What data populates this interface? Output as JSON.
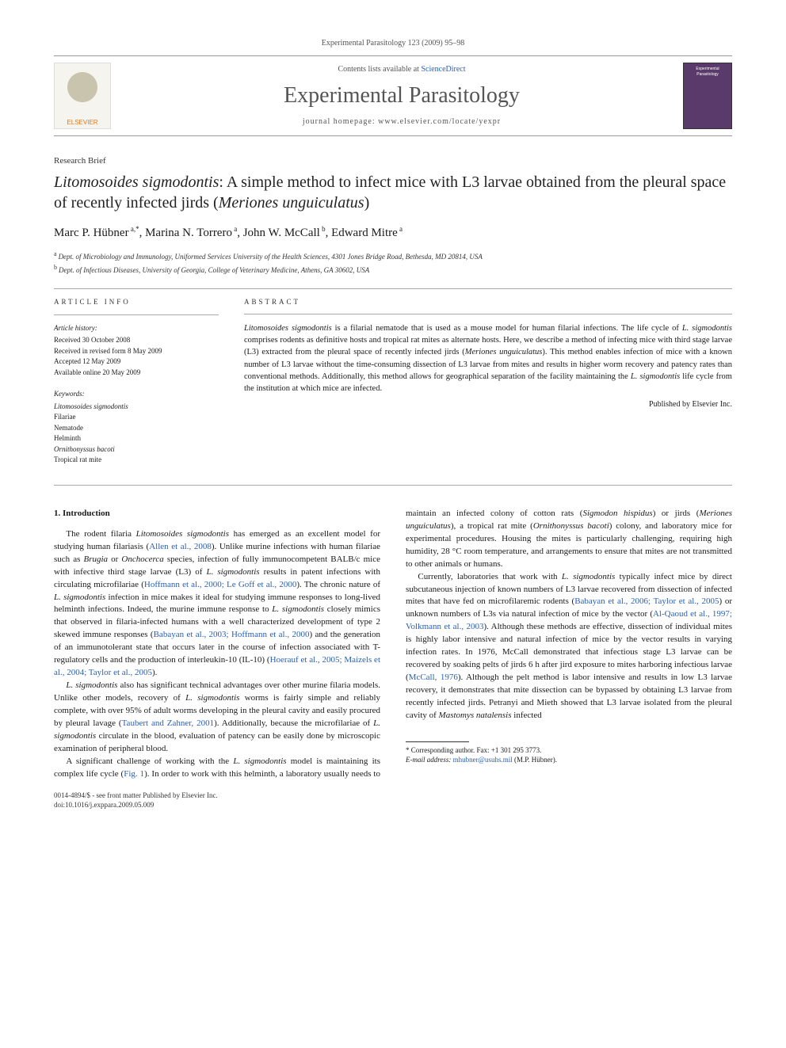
{
  "journal_ref_top": "Experimental Parasitology 123 (2009) 95–98",
  "header": {
    "contents_prefix": "Contents lists available at ",
    "contents_link": "ScienceDirect",
    "journal_title": "Experimental Parasitology",
    "homepage_prefix": "journal homepage: ",
    "homepage_url": "www.elsevier.com/locate/yexpr",
    "elsevier_label": "ELSEVIER",
    "cover_label": "Experimental Parasitology"
  },
  "article_type": "Research Brief",
  "title": {
    "part1": "Litomosoides sigmodontis",
    "part2": ": A simple method to infect mice with L3 larvae obtained from the pleural space of recently infected jirds (",
    "part3": "Meriones unguiculatus",
    "part4": ")"
  },
  "authors": [
    {
      "name": "Marc P. Hübner",
      "aff": "a,",
      "corr": "*"
    },
    {
      "name": "Marina N. Torrero",
      "aff": "a"
    },
    {
      "name": "John W. McCall",
      "aff": "b"
    },
    {
      "name": "Edward Mitre",
      "aff": "a"
    }
  ],
  "affiliations": [
    {
      "sup": "a",
      "text": "Dept. of Microbiology and Immunology, Uniformed Services University of the Health Sciences, 4301 Jones Bridge Road, Bethesda, MD 20814, USA"
    },
    {
      "sup": "b",
      "text": "Dept. of Infectious Diseases, University of Georgia, College of Veterinary Medicine, Athens, GA 30602, USA"
    }
  ],
  "article_info": {
    "heading": "article info",
    "history_heading": "Article history:",
    "history": [
      "Received 30 October 2008",
      "Received in revised form 8 May 2009",
      "Accepted 12 May 2009",
      "Available online 20 May 2009"
    ],
    "keywords_heading": "Keywords:",
    "keywords": [
      {
        "text": "Litomosoides sigmodontis",
        "ital": true
      },
      {
        "text": "Filariae",
        "ital": false
      },
      {
        "text": "Nematode",
        "ital": false
      },
      {
        "text": "Helminth",
        "ital": false
      },
      {
        "text": "Ornithonyssus bacoti",
        "ital": true
      },
      {
        "text": "Tropical rat mite",
        "ital": false
      }
    ]
  },
  "abstract": {
    "heading": "abstract",
    "text_parts": [
      {
        "t": "Litomosoides sigmodontis",
        "i": true
      },
      {
        "t": " is a filarial nematode that is used as a mouse model for human filarial infections. The life cycle of "
      },
      {
        "t": "L. sigmodontis",
        "i": true
      },
      {
        "t": " comprises rodents as definitive hosts and tropical rat mites as alternate hosts. Here, we describe a method of infecting mice with third stage larvae (L3) extracted from the pleural space of recently infected jirds ("
      },
      {
        "t": "Meriones unguiculatus",
        "i": true
      },
      {
        "t": "). This method enables infection of mice with a known number of L3 larvae without the time-consuming dissection of L3 larvae from mites and results in higher worm recovery and patency rates than conventional methods. Additionally, this method allows for geographical separation of the facility maintaining the "
      },
      {
        "t": "L. sigmodontis",
        "i": true
      },
      {
        "t": " life cycle from the institution at which mice are infected."
      }
    ],
    "publisher": "Published by Elsevier Inc."
  },
  "section1": {
    "heading": "1. Introduction",
    "paragraphs": [
      [
        {
          "t": "The rodent filaria "
        },
        {
          "t": "Litomosoides sigmodontis",
          "i": true
        },
        {
          "t": " has emerged as an excellent model for studying human filariasis ("
        },
        {
          "t": "Allen et al., 2008",
          "c": true
        },
        {
          "t": "). Unlike murine infections with human filariae such as "
        },
        {
          "t": "Brugia",
          "i": true
        },
        {
          "t": " or "
        },
        {
          "t": "Onchocerca",
          "i": true
        },
        {
          "t": " species, infection of fully immunocompetent BALB/c mice with infective third stage larvae (L3) of "
        },
        {
          "t": "L. sigmodontis",
          "i": true
        },
        {
          "t": " results in patent infections with circulating microfilariae ("
        },
        {
          "t": "Hoffmann et al., 2000; Le Goff et al., 2000",
          "c": true
        },
        {
          "t": "). The chronic nature of "
        },
        {
          "t": "L. sigmodontis",
          "i": true
        },
        {
          "t": " infection in mice makes it ideal for studying immune responses to long-lived helminth infections. Indeed, the murine immune response to "
        },
        {
          "t": "L. sigmodontis",
          "i": true
        },
        {
          "t": " closely mimics that observed in filaria-infected humans with a well characterized development of type 2 skewed immune responses ("
        },
        {
          "t": "Babayan et al., 2003; Hoffmann et al., 2000",
          "c": true
        },
        {
          "t": ") and the generation of an immunotolerant state that occurs later in the course of infection associated with T-regulatory cells and the production of interleukin-10 (IL-10) ("
        },
        {
          "t": "Hoerauf et al., 2005; Maizels et al., 2004; Taylor et al., 2005",
          "c": true
        },
        {
          "t": ")."
        }
      ],
      [
        {
          "t": "L. sigmodontis",
          "i": true
        },
        {
          "t": " also has significant technical advantages over other murine filaria models. Unlike other models, recovery of "
        },
        {
          "t": "L. sigmodontis",
          "i": true
        },
        {
          "t": " worms is fairly simple and reliably complete, with over 95% of adult worms developing in the pleural cavity and easily procured by pleural lavage ("
        },
        {
          "t": "Taubert and Zahner, 2001",
          "c": true
        },
        {
          "t": "). Additionally, because the microfilariae of "
        },
        {
          "t": "L. sigmodontis",
          "i": true
        },
        {
          "t": " circulate in the blood, evaluation of patency can be easily done by microscopic examination of peripheral blood."
        }
      ],
      [
        {
          "t": "A significant challenge of working with the "
        },
        {
          "t": "L. sigmodontis",
          "i": true
        },
        {
          "t": " model is maintaining its complex life cycle ("
        },
        {
          "t": "Fig. 1",
          "c": true
        },
        {
          "t": "). In order to work with this helminth, a laboratory usually needs to maintain an infected colony of cotton rats ("
        },
        {
          "t": "Sigmodon hispidus",
          "i": true
        },
        {
          "t": ") or jirds ("
        },
        {
          "t": "Meriones unguiculatus",
          "i": true
        },
        {
          "t": "), a tropical rat mite ("
        },
        {
          "t": "Ornithonyssus bacoti",
          "i": true
        },
        {
          "t": ") colony, and laboratory mice for experimental procedures. Housing the mites is particularly challenging, requiring high humidity, 28 °C room temperature, and arrangements to ensure that mites are not transmitted to other animals or humans."
        }
      ],
      [
        {
          "t": "Currently, laboratories that work with "
        },
        {
          "t": "L. sigmodontis",
          "i": true
        },
        {
          "t": " typically infect mice by direct subcutaneous injection of known numbers of L3 larvae recovered from dissection of infected mites that have fed on microfilaremic rodents ("
        },
        {
          "t": "Babayan et al., 2006; Taylor et al., 2005",
          "c": true
        },
        {
          "t": ") or unknown numbers of L3s via natural infection of mice by the vector ("
        },
        {
          "t": "Al-Qaoud et al., 1997; Volkmann et al., 2003",
          "c": true
        },
        {
          "t": "). Although these methods are effective, dissection of individual mites is highly labor intensive and natural infection of mice by the vector results in varying infection rates. In 1976, McCall demonstrated that infectious stage L3 larvae can be recovered by soaking pelts of jirds 6 h after jird exposure to mites harboring infectious larvae ("
        },
        {
          "t": "McCall, 1976",
          "c": true
        },
        {
          "t": "). Although the pelt method is labor intensive and results in low L3 larvae recovery, it demonstrates that mite dissection can be bypassed by obtaining L3 larvae from recently infected jirds. Petranyi and Mieth showed that L3 larvae isolated from the pleural cavity of "
        },
        {
          "t": "Mastomys natalensis",
          "i": true
        },
        {
          "t": " infected"
        }
      ]
    ]
  },
  "footer": {
    "corr_label": "* Corresponding author. Fax: +1 301 295 3773.",
    "email_label": "E-mail address: ",
    "email": "mhubner@usuhs.mil",
    "email_suffix": " (M.P. Hübner).",
    "copyright": "0014-4894/$ - see front matter Published by Elsevier Inc.",
    "doi": "doi:10.1016/j.exppara.2009.05.009"
  }
}
